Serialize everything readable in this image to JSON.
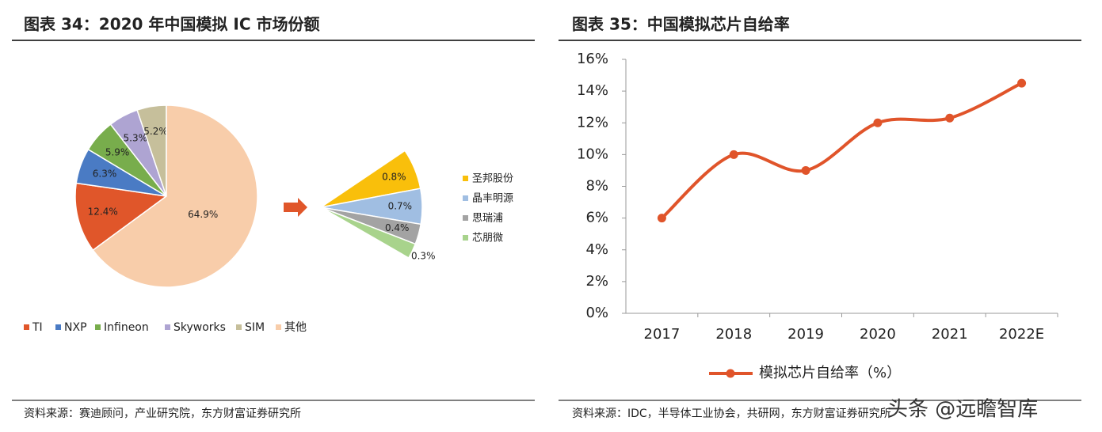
{
  "chart_data": [
    {
      "type": "pie",
      "title": "图表 34：2020 年中国模拟 IC 市场份额",
      "categories": [
        "TI",
        "NXP",
        "Infineon",
        "Skyworks",
        "SIM",
        "其他"
      ],
      "values": [
        12.4,
        6.3,
        5.9,
        5.3,
        5.2,
        64.9
      ],
      "value_labels": [
        "12.4%",
        "6.3%",
        "5.9%",
        "5.3%",
        "5.2%",
        "64.9%"
      ],
      "colors": [
        "#e0562a",
        "#4a7bc4",
        "#78ad4c",
        "#aea4d2",
        "#c6bf9b",
        "#f8cdaa"
      ],
      "subpie": {
        "categories": [
          "圣邦股份",
          "晶丰明源",
          "思瑞浦",
          "芯朋微"
        ],
        "values": [
          0.8,
          0.7,
          0.4,
          0.3
        ],
        "value_labels": [
          "0.8%",
          "0.7%",
          "0.4%",
          "0.3%"
        ],
        "colors": [
          "#f9bf0b",
          "#a0bee2",
          "#a3a3a3",
          "#a8d38c"
        ]
      },
      "legend": "bottom",
      "source": "资料来源：赛迪顾问，产业研究院，东方财富证券研究所"
    },
    {
      "type": "line",
      "title": "图表 35：中国模拟芯片自给率",
      "categories": [
        "2017",
        "2018",
        "2019",
        "2020",
        "2021",
        "2022E"
      ],
      "series": [
        {
          "name": "模拟芯片自给率（%）",
          "color": "#e0542a",
          "values": [
            6,
            10,
            9,
            12,
            12.3,
            14.5
          ]
        }
      ],
      "ylim": [
        0,
        16
      ],
      "yticks": [
        {
          "value": 0,
          "label": "0%"
        },
        {
          "value": 2,
          "label": "2%"
        },
        {
          "value": 4,
          "label": "4%"
        },
        {
          "value": 6,
          "label": "6%"
        },
        {
          "value": 8,
          "label": "8%"
        },
        {
          "value": 10,
          "label": "10%"
        },
        {
          "value": 12,
          "label": "12%"
        },
        {
          "value": 14,
          "label": "14%"
        },
        {
          "value": 16,
          "label": "16%"
        }
      ],
      "legend": "bottom",
      "source": "资料来源：IDC，半导体工业协会，共研网，东方财富证券研究所"
    }
  ],
  "watermark": "头条 @远瞻智库"
}
